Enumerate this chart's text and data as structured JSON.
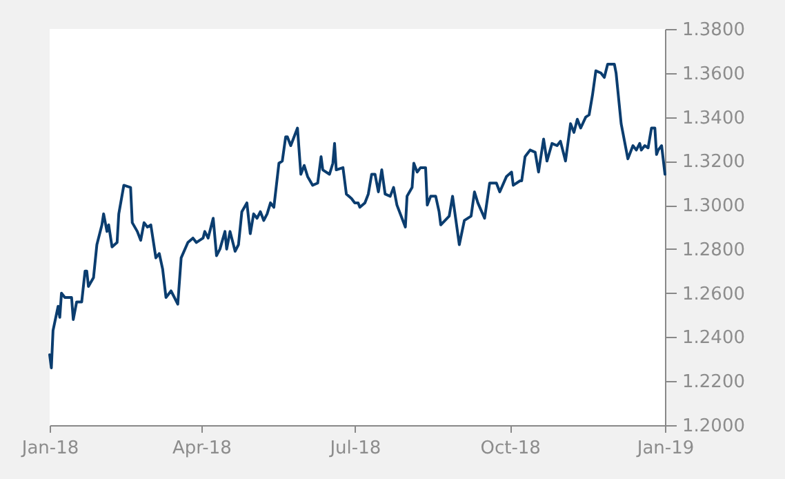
{
  "chart_data": {
    "type": "line",
    "x": [
      "2018-01-01",
      "2018-01-02",
      "2018-01-03",
      "2018-01-06",
      "2018-01-07",
      "2018-01-08",
      "2018-01-10",
      "2018-01-14",
      "2018-01-15",
      "2018-01-17",
      "2018-01-20",
      "2018-01-22",
      "2018-01-23",
      "2018-01-24",
      "2018-01-27",
      "2018-01-29",
      "2018-02-01",
      "2018-02-02",
      "2018-02-04",
      "2018-02-05",
      "2018-02-07",
      "2018-02-10",
      "2018-02-11",
      "2018-02-14",
      "2018-02-18",
      "2018-02-19",
      "2018-02-22",
      "2018-02-24",
      "2018-02-26",
      "2018-02-28",
      "2018-03-02",
      "2018-03-05",
      "2018-03-07",
      "2018-03-09",
      "2018-03-11",
      "2018-03-14",
      "2018-03-18",
      "2018-03-20",
      "2018-03-24",
      "2018-03-27",
      "2018-03-29",
      "2018-04-02",
      "2018-04-03",
      "2018-04-05",
      "2018-04-08",
      "2018-04-10",
      "2018-04-12",
      "2018-04-15",
      "2018-04-16",
      "2018-04-18",
      "2018-04-21",
      "2018-04-23",
      "2018-04-25",
      "2018-04-28",
      "2018-04-30",
      "2018-05-02",
      "2018-05-04",
      "2018-05-06",
      "2018-05-08",
      "2018-05-10",
      "2018-05-12",
      "2018-05-14",
      "2018-05-17",
      "2018-05-19",
      "2018-05-21",
      "2018-05-22",
      "2018-05-24",
      "2018-05-28",
      "2018-05-30",
      "2018-06-01",
      "2018-06-03",
      "2018-06-06",
      "2018-06-09",
      "2018-06-11",
      "2018-06-12",
      "2018-06-16",
      "2018-06-18",
      "2018-06-19",
      "2018-06-20",
      "2018-06-24",
      "2018-06-26",
      "2018-06-29",
      "2018-07-01",
      "2018-07-03",
      "2018-07-04",
      "2018-07-07",
      "2018-07-09",
      "2018-07-11",
      "2018-07-13",
      "2018-07-15",
      "2018-07-17",
      "2018-07-19",
      "2018-07-22",
      "2018-07-24",
      "2018-07-26",
      "2018-07-31",
      "2018-08-01",
      "2018-08-04",
      "2018-08-05",
      "2018-08-07",
      "2018-08-09",
      "2018-08-12",
      "2018-08-13",
      "2018-08-15",
      "2018-08-18",
      "2018-08-20",
      "2018-08-21",
      "2018-08-26",
      "2018-08-28",
      "2018-09-01",
      "2018-09-04",
      "2018-09-08",
      "2018-09-10",
      "2018-09-12",
      "2018-09-16",
      "2018-09-19",
      "2018-09-23",
      "2018-09-25",
      "2018-09-29",
      "2018-10-02",
      "2018-10-03",
      "2018-10-07",
      "2018-10-08",
      "2018-10-10",
      "2018-10-13",
      "2018-10-16",
      "2018-10-18",
      "2018-10-21",
      "2018-10-23",
      "2018-10-26",
      "2018-10-29",
      "2018-10-31",
      "2018-11-03",
      "2018-11-06",
      "2018-11-08",
      "2018-11-10",
      "2018-11-12",
      "2018-11-15",
      "2018-11-17",
      "2018-11-19",
      "2018-11-21",
      "2018-11-24",
      "2018-11-26",
      "2018-11-28",
      "2018-12-02",
      "2018-12-03",
      "2018-12-06",
      "2018-12-10",
      "2018-12-13",
      "2018-12-15",
      "2018-12-17",
      "2018-12-18",
      "2018-12-20",
      "2018-12-22",
      "2018-12-24",
      "2018-12-26",
      "2018-12-27",
      "2018-12-28",
      "2018-12-30",
      "2019-01-01"
    ],
    "series": [
      {
        "color": "#0b3d6f",
        "values": [
          1.232,
          1.226,
          1.243,
          1.254,
          1.249,
          1.26,
          1.258,
          1.258,
          1.248,
          1.256,
          1.256,
          1.27,
          1.27,
          1.263,
          1.267,
          1.282,
          1.291,
          1.296,
          1.288,
          1.291,
          1.281,
          1.283,
          1.296,
          1.309,
          1.308,
          1.292,
          1.288,
          1.284,
          1.292,
          1.29,
          1.291,
          1.276,
          1.278,
          1.271,
          1.258,
          1.261,
          1.255,
          1.276,
          1.283,
          1.285,
          1.283,
          1.285,
          1.288,
          1.285,
          1.294,
          1.277,
          1.28,
          1.288,
          1.28,
          1.288,
          1.279,
          1.282,
          1.297,
          1.301,
          1.287,
          1.296,
          1.294,
          1.297,
          1.293,
          1.296,
          1.301,
          1.299,
          1.319,
          1.32,
          1.331,
          1.331,
          1.327,
          1.335,
          1.314,
          1.318,
          1.313,
          1.309,
          1.31,
          1.322,
          1.316,
          1.314,
          1.319,
          1.328,
          1.316,
          1.317,
          1.305,
          1.303,
          1.301,
          1.301,
          1.299,
          1.301,
          1.305,
          1.314,
          1.314,
          1.306,
          1.316,
          1.305,
          1.304,
          1.308,
          1.3,
          1.29,
          1.304,
          1.308,
          1.319,
          1.315,
          1.317,
          1.317,
          1.3,
          1.304,
          1.304,
          1.297,
          1.291,
          1.295,
          1.304,
          1.282,
          1.293,
          1.295,
          1.306,
          1.301,
          1.294,
          1.31,
          1.31,
          1.306,
          1.313,
          1.315,
          1.309,
          1.311,
          1.311,
          1.322,
          1.325,
          1.324,
          1.315,
          1.33,
          1.32,
          1.328,
          1.327,
          1.329,
          1.32,
          1.337,
          1.333,
          1.339,
          1.335,
          1.34,
          1.341,
          1.35,
          1.361,
          1.36,
          1.358,
          1.364,
          1.364,
          1.36,
          1.337,
          1.321,
          1.327,
          1.325,
          1.328,
          1.325,
          1.327,
          1.326,
          1.335,
          1.335,
          1.323,
          1.325,
          1.327,
          1.314
        ]
      }
    ],
    "xlim": [
      "2018-01-01",
      "2019-01-01"
    ],
    "xticks": [
      {
        "value": "2018-01-01",
        "label": "Jan-18"
      },
      {
        "value": "2018-04-01",
        "label": "Apr-18"
      },
      {
        "value": "2018-07-01",
        "label": "Jul-18"
      },
      {
        "value": "2018-10-01",
        "label": "Oct-18"
      },
      {
        "value": "2019-01-01",
        "label": "Jan-19"
      }
    ],
    "ylim": [
      1.2,
      1.38
    ],
    "yticks": [
      {
        "value": 1.2,
        "label": "1.2000"
      },
      {
        "value": 1.22,
        "label": "1.2200"
      },
      {
        "value": 1.24,
        "label": "1.2400"
      },
      {
        "value": 1.26,
        "label": "1.2600"
      },
      {
        "value": 1.28,
        "label": "1.2800"
      },
      {
        "value": 1.3,
        "label": "1.3000"
      },
      {
        "value": 1.32,
        "label": "1.3200"
      },
      {
        "value": 1.34,
        "label": "1.3400"
      },
      {
        "value": 1.36,
        "label": "1.3600"
      },
      {
        "value": 1.38,
        "label": "1.3800"
      }
    ],
    "grid": false,
    "legend": false
  }
}
